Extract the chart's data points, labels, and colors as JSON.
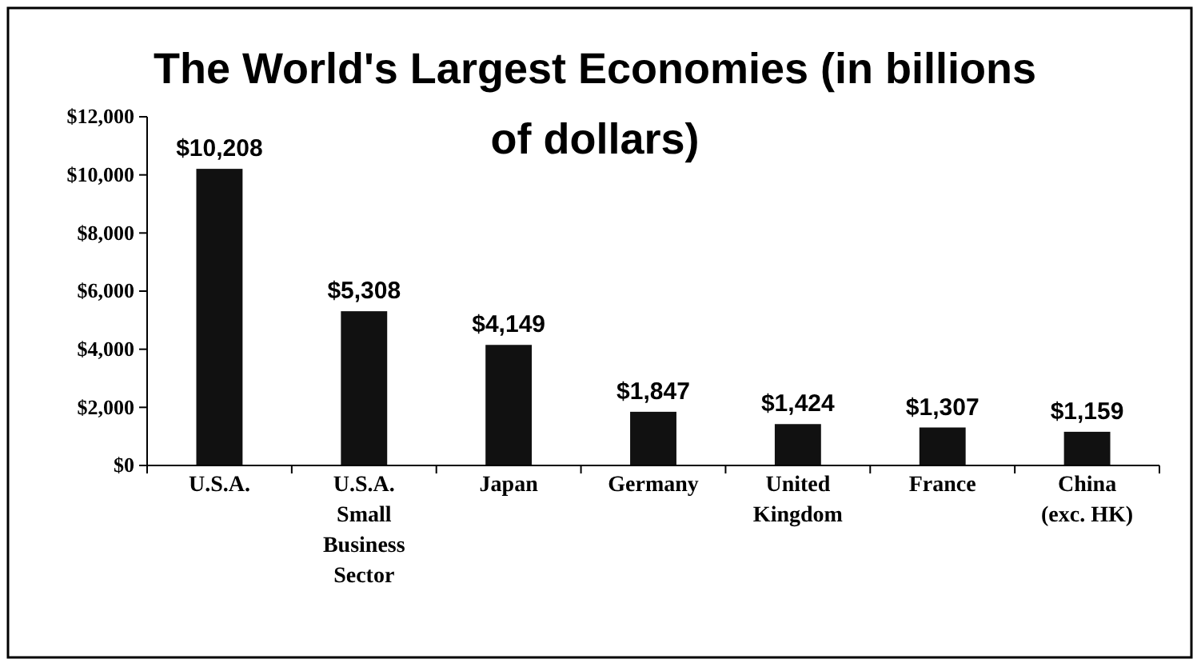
{
  "chart_data": {
    "type": "bar",
    "title": "The World's Largest Economies (in billions of dollars)",
    "categories": [
      "U.S.A.",
      "U.S.A. Small Business Sector",
      "Japan",
      "Germany",
      "United Kingdom",
      "France",
      "China (exc. HK)"
    ],
    "values": [
      10208,
      5308,
      4149,
      1847,
      1424,
      1307,
      1159
    ],
    "value_labels": [
      "$10,208",
      "$5,308",
      "$4,149",
      "$1,847",
      "$1,424",
      "$1,307",
      "$1,159"
    ],
    "color": "#111111",
    "ylim": [
      0,
      12000
    ],
    "yticks": [
      {
        "value": 0,
        "label": "$0"
      },
      {
        "value": 2000,
        "label": "$2,000"
      },
      {
        "value": 4000,
        "label": "$4,000"
      },
      {
        "value": 6000,
        "label": "$6,000"
      },
      {
        "value": 8000,
        "label": "$8,000"
      },
      {
        "value": 10000,
        "label": "$10,000"
      },
      {
        "value": 12000,
        "label": "$12,000"
      }
    ]
  }
}
